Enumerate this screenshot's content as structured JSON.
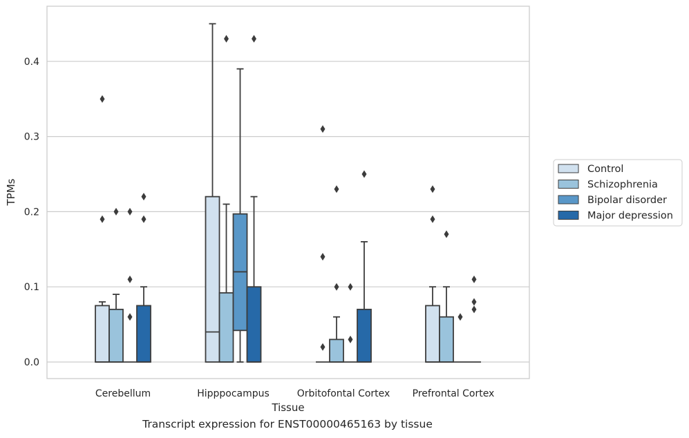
{
  "caption": "Transcript expression for ENST00000465163 by tissue",
  "chart_data": {
    "type": "box",
    "xlabel": "Tissue",
    "ylabel": "TPMs",
    "ylim": [
      -0.022,
      0.474
    ],
    "yticks": [
      0.0,
      0.1,
      0.2,
      0.3,
      0.4
    ],
    "ytick_labels": [
      "0.0",
      "0.1",
      "0.2",
      "0.3",
      "0.4"
    ],
    "grid": "horizontal",
    "legend_position": "right",
    "categories": [
      "Cerebellum",
      "Hipppocampus",
      "Orbitofontal Cortex",
      "Prefrontal Cortex"
    ],
    "series": [
      {
        "name": "Control",
        "color": "#d1e1ef",
        "boxes": [
          {
            "q1": 0.0,
            "median": 0.0,
            "q3": 0.075,
            "whislo": 0.0,
            "whishi": 0.08,
            "fliers": [
              0.19,
              0.35
            ]
          },
          {
            "q1": 0.0,
            "median": 0.04,
            "q3": 0.22,
            "whislo": 0.0,
            "whishi": 0.45,
            "fliers": []
          },
          {
            "q1": 0.0,
            "median": 0.0,
            "q3": 0.0,
            "whislo": 0.0,
            "whishi": 0.0,
            "fliers": [
              0.02,
              0.14,
              0.31
            ]
          },
          {
            "q1": 0.0,
            "median": 0.0,
            "q3": 0.075,
            "whislo": 0.0,
            "whishi": 0.1,
            "fliers": [
              0.19,
              0.23
            ]
          }
        ]
      },
      {
        "name": "Schizophrenia",
        "color": "#9ac3dc",
        "boxes": [
          {
            "q1": 0.0,
            "median": 0.0,
            "q3": 0.07,
            "whislo": 0.0,
            "whishi": 0.09,
            "fliers": [
              0.2
            ]
          },
          {
            "q1": 0.0,
            "median": 0.0,
            "q3": 0.092,
            "whislo": 0.0,
            "whishi": 0.21,
            "fliers": [
              0.43
            ]
          },
          {
            "q1": 0.0,
            "median": 0.0,
            "q3": 0.03,
            "whislo": 0.0,
            "whishi": 0.06,
            "fliers": [
              0.1,
              0.23
            ]
          },
          {
            "q1": 0.0,
            "median": 0.0,
            "q3": 0.06,
            "whislo": 0.0,
            "whishi": 0.1,
            "fliers": [
              0.17
            ]
          }
        ]
      },
      {
        "name": "Bipolar disorder",
        "color": "#5997c8",
        "boxes": [
          {
            "q1": 0.0,
            "median": 0.0,
            "q3": 0.0,
            "whislo": 0.0,
            "whishi": 0.0,
            "fliers": [
              0.06,
              0.11,
              0.2
            ]
          },
          {
            "q1": 0.042,
            "median": 0.12,
            "q3": 0.197,
            "whislo": 0.0,
            "whishi": 0.39,
            "fliers": []
          },
          {
            "q1": 0.0,
            "median": 0.0,
            "q3": 0.0,
            "whislo": 0.0,
            "whishi": 0.0,
            "fliers": [
              0.03,
              0.1
            ]
          },
          {
            "q1": 0.0,
            "median": 0.0,
            "q3": 0.0,
            "whislo": 0.0,
            "whishi": 0.0,
            "fliers": [
              0.06
            ]
          }
        ]
      },
      {
        "name": "Major depression",
        "color": "#2669a8",
        "boxes": [
          {
            "q1": 0.0,
            "median": 0.0,
            "q3": 0.075,
            "whislo": 0.0,
            "whishi": 0.1,
            "fliers": [
              0.19,
              0.22
            ]
          },
          {
            "q1": 0.0,
            "median": 0.0,
            "q3": 0.1,
            "whislo": 0.0,
            "whishi": 0.22,
            "fliers": [
              0.43
            ]
          },
          {
            "q1": 0.0,
            "median": 0.0,
            "q3": 0.07,
            "whislo": 0.0,
            "whishi": 0.16,
            "fliers": [
              0.25
            ]
          },
          {
            "q1": 0.0,
            "median": 0.0,
            "q3": 0.0,
            "whislo": 0.0,
            "whishi": 0.0,
            "fliers": [
              0.07,
              0.08,
              0.11
            ]
          }
        ]
      }
    ]
  }
}
